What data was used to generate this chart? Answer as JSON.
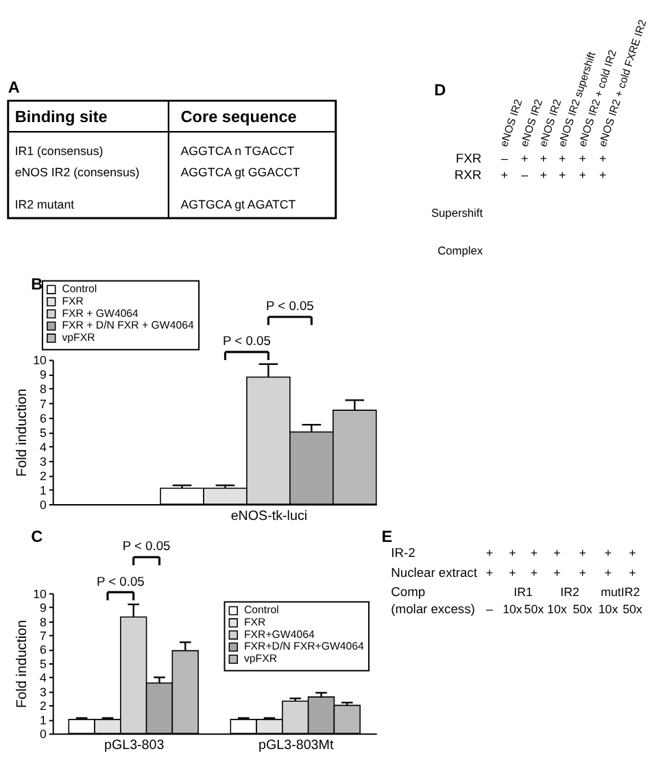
{
  "chart_data": [
    {
      "type": "other",
      "title": "A",
      "cell_labels": [
        [
          "Binding site",
          "Core sequence"
        ],
        [
          "IR1 (consensus)",
          "AGGTCA n TGACCT"
        ],
        [
          "eNOS IR2 (consensus)",
          "AGGTCA gt GGACCT"
        ],
        [
          "IR2 mutant",
          "AGTGCA gt AGATCT"
        ]
      ]
    },
    {
      "type": "bar",
      "title": "B",
      "categories": [
        "eNOS-tk-luci"
      ],
      "ylabel": "Fold induction",
      "ylim": [
        0,
        10
      ],
      "yticks": [
        0,
        1,
        2,
        3,
        4,
        5,
        6,
        7,
        8,
        9,
        10
      ],
      "legend": "top left",
      "annotations": [
        "P < 0.05",
        "P < 0.05"
      ],
      "series": [
        {
          "name": "Control",
          "color": "#ffffff",
          "values": [
            1.1
          ],
          "errors": [
            0.2
          ]
        },
        {
          "name": "FXR",
          "color": "#e2e2e2",
          "values": [
            1.1
          ],
          "errors": [
            0.2
          ]
        },
        {
          "name": "FXR + GW4064",
          "color": "#d3d3d3",
          "values": [
            8.8
          ],
          "errors": [
            0.9
          ]
        },
        {
          "name": "FXR + D/N FXR + GW4064",
          "color": "#a6a6a6",
          "values": [
            5.0
          ],
          "errors": [
            0.5
          ]
        },
        {
          "name": "vpFXR",
          "color": "#b9b9b9",
          "values": [
            6.5
          ],
          "errors": [
            0.7
          ]
        }
      ]
    },
    {
      "type": "bar",
      "title": "C",
      "categories": [
        "pGL3-803",
        "pGL3-803Mt"
      ],
      "ylabel": "Fold induction",
      "ylim": [
        0,
        10
      ],
      "yticks": [
        0,
        1,
        2,
        3,
        4,
        5,
        6,
        7,
        8,
        9,
        10
      ],
      "legend": "top right",
      "annotations": [
        "P < 0.05",
        "P < 0.05"
      ],
      "series": [
        {
          "name": "Control",
          "color": "#ffffff",
          "values": [
            1.0,
            1.0
          ],
          "errors": [
            0.1,
            0.1
          ]
        },
        {
          "name": "FXR",
          "color": "#e2e2e2",
          "values": [
            1.0,
            1.0
          ],
          "errors": [
            0.1,
            0.1
          ]
        },
        {
          "name": "FXR+GW4064",
          "color": "#d3d3d3",
          "values": [
            8.3,
            2.3
          ],
          "errors": [
            0.9,
            0.2
          ]
        },
        {
          "name": "FXR+D/N FXR+GW4064",
          "color": "#a6a6a6",
          "values": [
            3.6,
            2.6
          ],
          "errors": [
            0.4,
            0.3
          ]
        },
        {
          "name": "vpFXR",
          "color": "#b9b9b9",
          "values": [
            5.9,
            2.0
          ],
          "errors": [
            0.6,
            0.2
          ]
        }
      ]
    },
    {
      "type": "other",
      "title": "D",
      "categories": [
        "eNOS IR2",
        "eNOS IR2",
        "eNOS IR2",
        "eNOS IR2 supershift",
        "eNOS IR2 + cold IR2",
        "eNOS IR2 + cold FXRE IR2"
      ],
      "y_categories": [
        "FXR",
        "RXR"
      ],
      "cell_labels": [
        [
          "–",
          "+",
          "+",
          "+",
          "+",
          "+"
        ],
        [
          "+",
          "–",
          "+",
          "+",
          "+",
          "+"
        ]
      ],
      "annotations": [
        "Supershift",
        "Complex"
      ]
    },
    {
      "type": "other",
      "title": "E",
      "y_categories": [
        "IR-2",
        "Nuclear extract",
        "Comp",
        "(molar excess)"
      ],
      "cell_labels": [
        [
          "+",
          "+",
          "+",
          "+",
          "+",
          "+",
          "+"
        ],
        [
          "+",
          "+",
          "+",
          "+",
          "+",
          "+",
          "+"
        ],
        [
          null,
          "IR1",
          null,
          "IR2",
          null,
          "mutIR2",
          null
        ],
        [
          "–",
          "10x",
          "50x",
          "10x",
          "50x",
          "10x",
          "50x"
        ]
      ]
    }
  ]
}
